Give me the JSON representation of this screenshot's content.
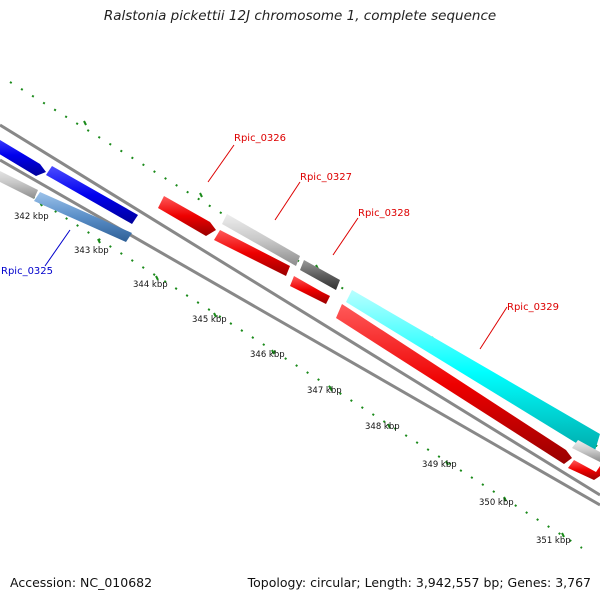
{
  "title": "Ralstonia pickettii 12J chromosome 1, complete sequence",
  "accession": "Accession: NC_010682",
  "summary": "Topology: circular; Length: 3,942,557 bp; Genes: 3,767",
  "colors": {
    "tick": "#1a8a1a",
    "backbone": "#888888",
    "forward_dark": "#0000ee",
    "forward_light": "#6aa0d8",
    "reverse": "#ee0000",
    "cyan": "#00ffff",
    "grey_light": "#c8c8c8",
    "grey_dark": "#606060",
    "label_red": "#dd0000",
    "label_blue": "#0000cc"
  },
  "kbp_labels": [
    "342 kbp",
    "343 kbp",
    "344 kbp",
    "345 kbp",
    "346 kbp",
    "347 kbp",
    "348 kbp",
    "349 kbp",
    "350 kbp",
    "351 kbp"
  ],
  "gene_labels": [
    {
      "text": "Rpic_0325",
      "color": "blue"
    },
    {
      "text": "Rpic_0326",
      "color": "red"
    },
    {
      "text": "Rpic_0327",
      "color": "red"
    },
    {
      "text": "Rpic_0328",
      "color": "red"
    },
    {
      "text": "Rpic_0329",
      "color": "red"
    }
  ]
}
